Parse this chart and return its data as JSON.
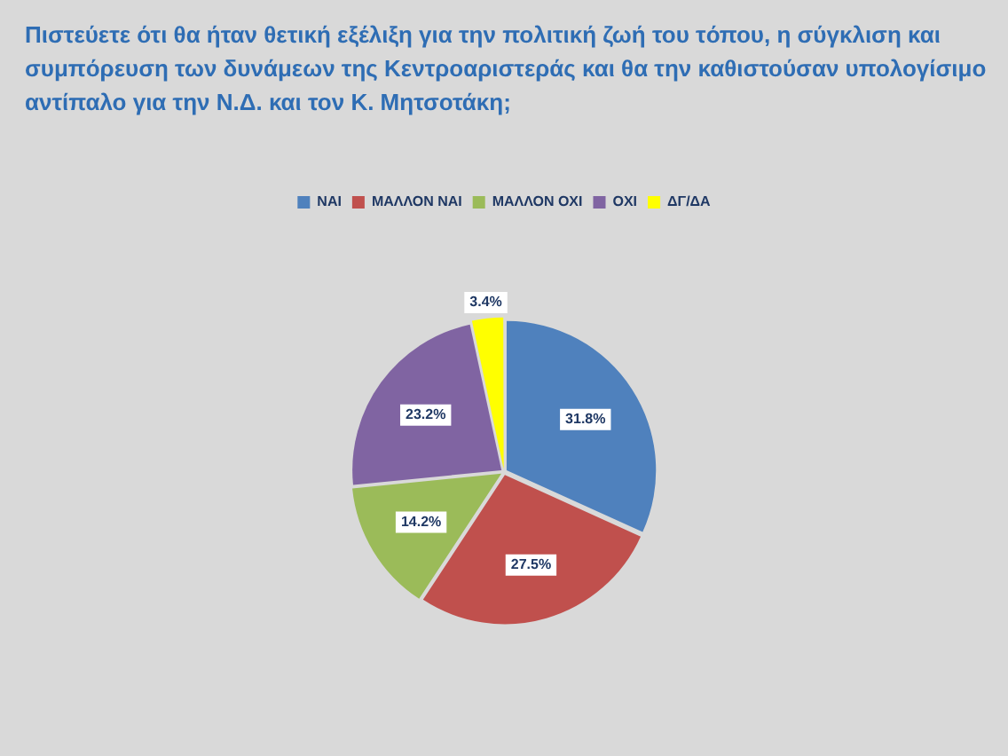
{
  "chart_data": {
    "type": "pie",
    "title": "Πιστεύετε ότι θα ήταν θετική εξέλιξη για την πολιτική ζωή του τόπου, η σύγκλιση και συμπόρευση των δυνάμεων της Κεντροαριστεράς και θα την καθιστούσαν υπολογίσιμο αντίπαλο για την Ν.Δ. και τον Κ. Μητσοτάκη;",
    "categories": [
      "ΝΑΙ",
      "ΜΑΛΛΟΝ ΝΑΙ",
      "ΜΑΛΛΟΝ ΟΧΙ",
      "ΟΧΙ",
      "ΔΓ/ΔΑ"
    ],
    "values": [
      31.8,
      27.5,
      14.2,
      23.2,
      3.4
    ],
    "colors": [
      "#4f81bd",
      "#c0504d",
      "#9bbb59",
      "#8064a2",
      "#ffff00"
    ],
    "value_labels": [
      "31.8%",
      "27.5%",
      "14.2%",
      "23.2%",
      "3.4%"
    ],
    "legend": "top"
  }
}
